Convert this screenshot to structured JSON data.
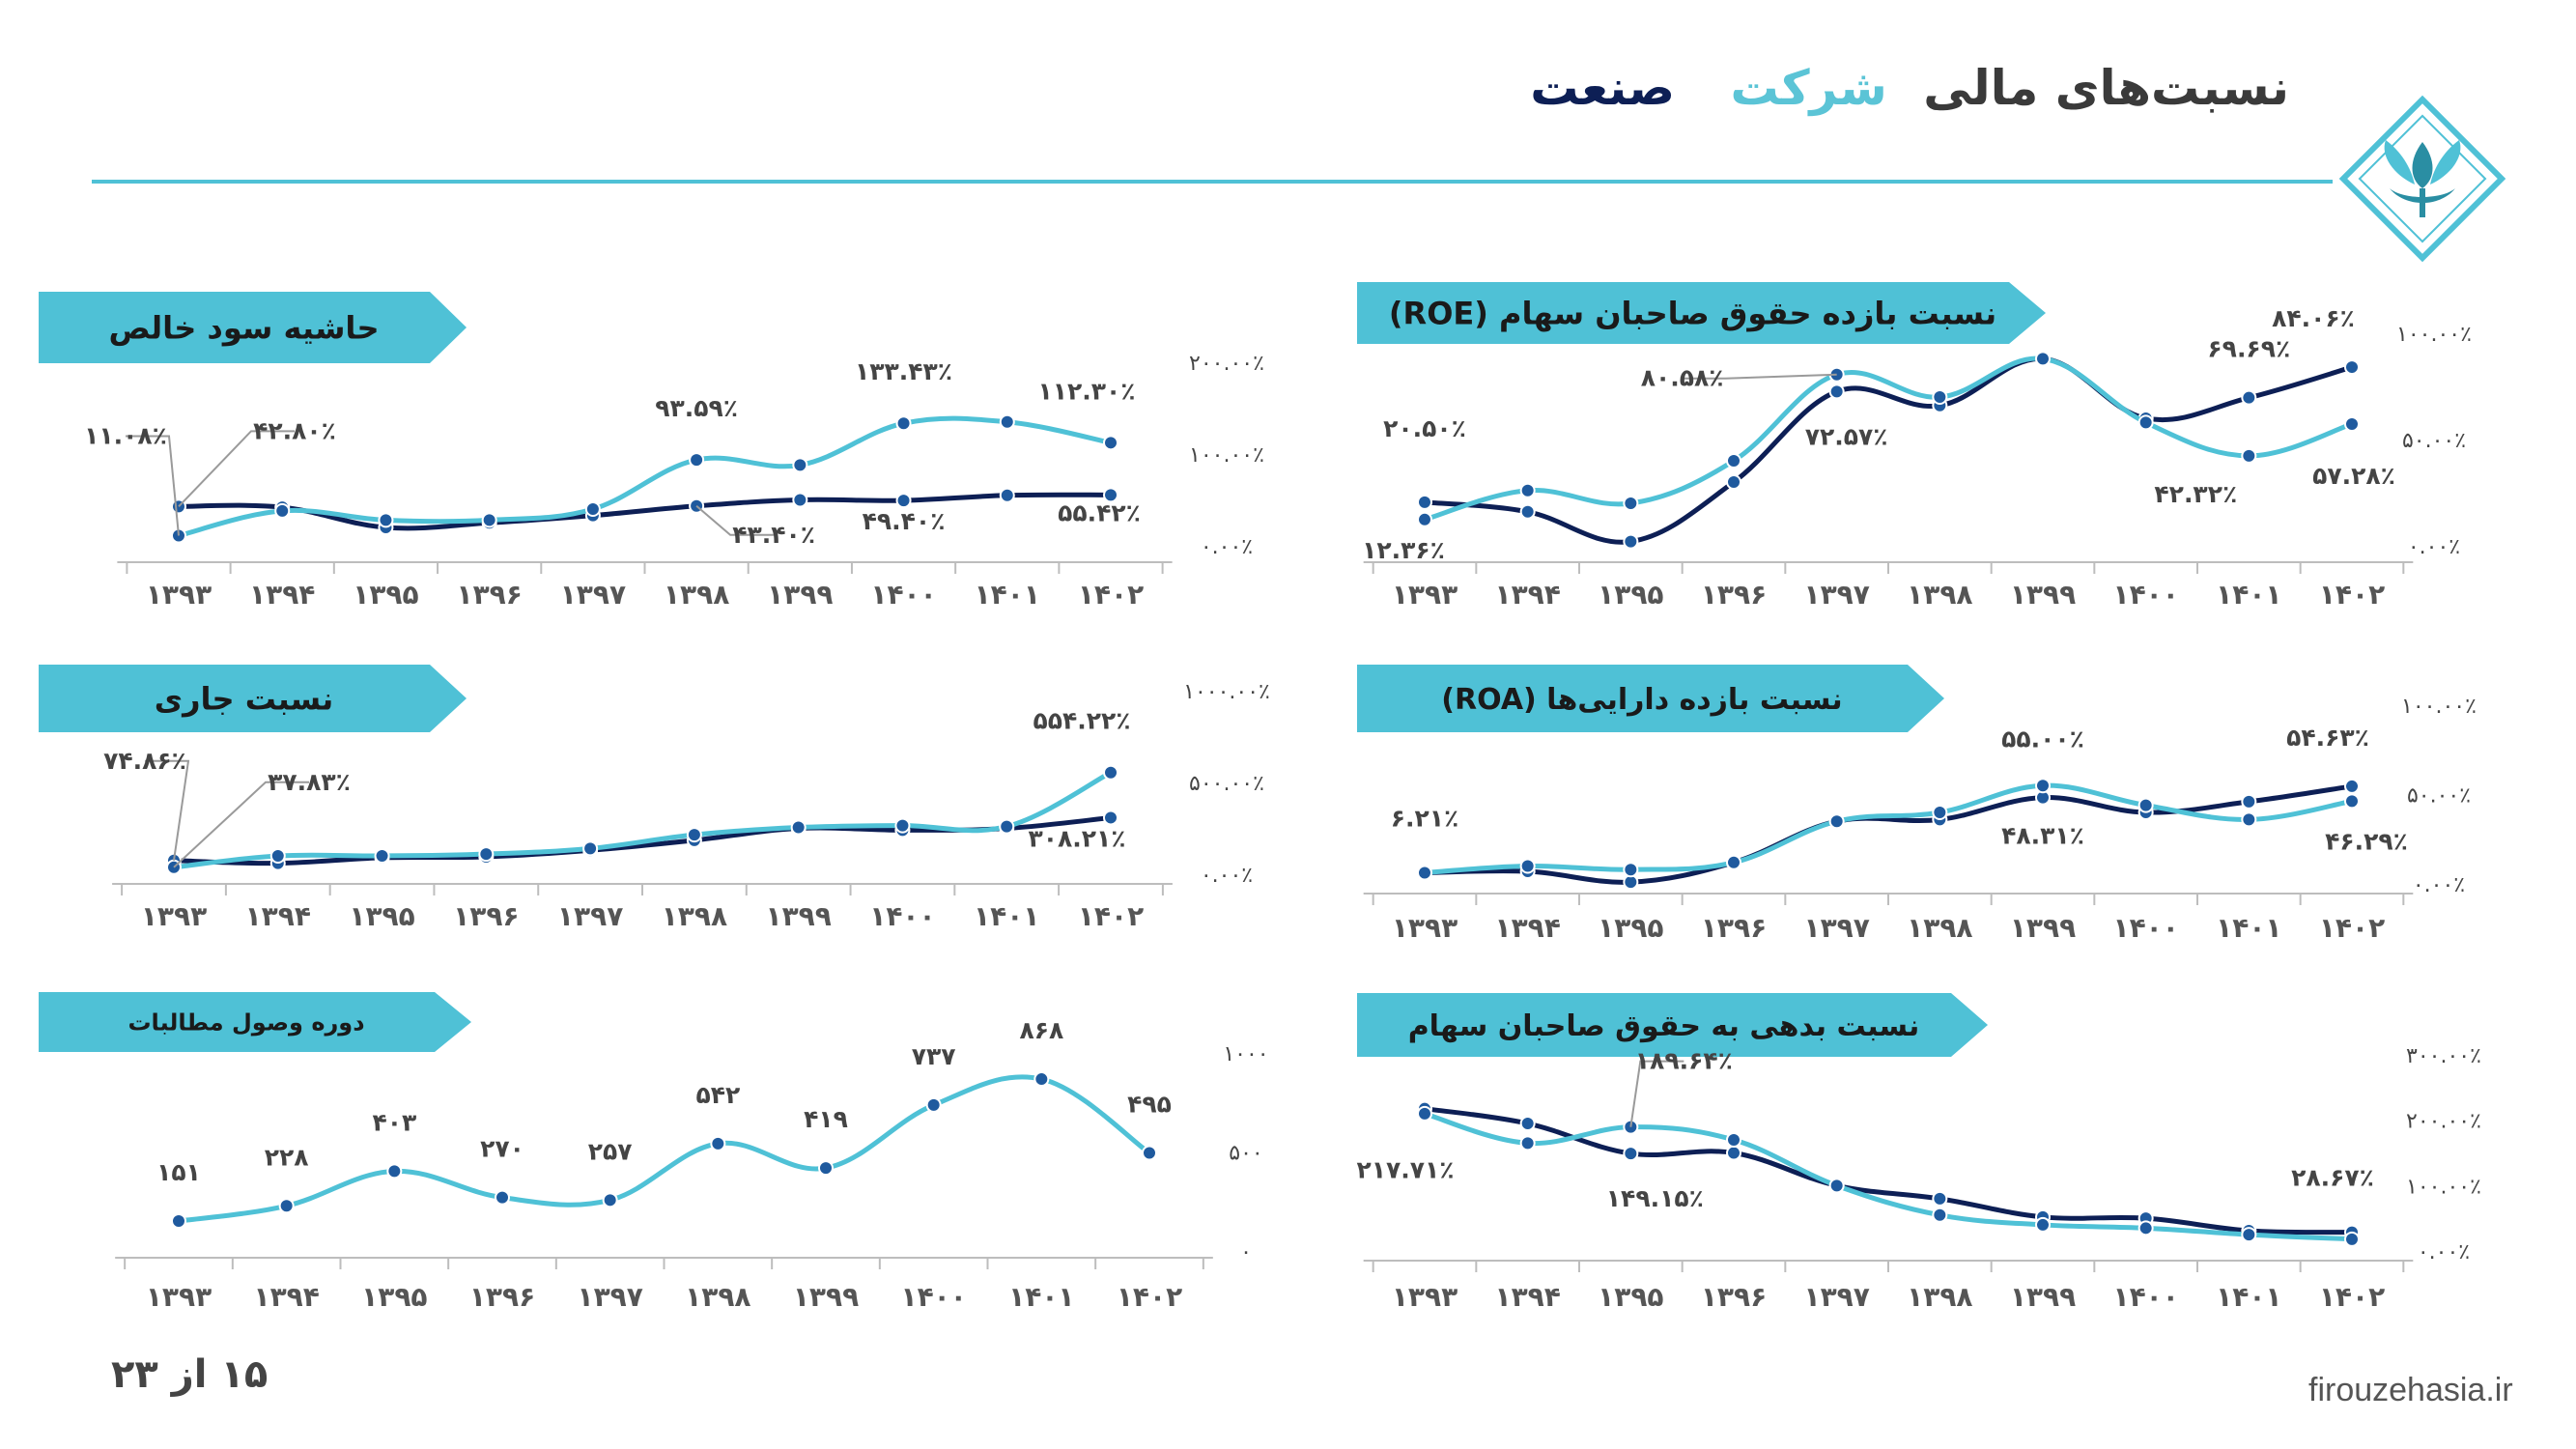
{
  "header": {
    "title_prefix": "نسبت‌های مالی",
    "title_company": "شرکت",
    "title_sector": "صنعت",
    "colors": {
      "line": "#4fc1d6",
      "company": "#5bc4d6",
      "sector": "#0d1f55",
      "banner": "#4fc1d6"
    }
  },
  "footer": {
    "page": "۱۵ از ۲۳",
    "website": "firouzehasia.ir"
  },
  "logo": {
    "icon": "firouzeh-logo-icon"
  },
  "chart_data": [
    {
      "id": "roe",
      "type": "line",
      "banner": "نسبت بازده حقوق صاحبان سهام (ROE)",
      "categories": [
        "۱۳۹۳",
        "۱۳۹۴",
        "۱۳۹۵",
        "۱۳۹۶",
        "۱۳۹۷",
        "۱۳۹۸",
        "۱۳۹۹",
        "۱۴۰۰",
        "۱۴۰۱",
        "۱۴۰۲"
      ],
      "y_ticks": [
        "۰.۰۰٪",
        "۵۰.۰۰٪",
        "۱۰۰.۰۰٪"
      ],
      "ylim": [
        0,
        100
      ],
      "series": [
        {
          "color": "#0d1f55",
          "values": [
            20.5,
            16,
            2,
            30,
            72.57,
            66,
            88,
            60,
            69.69,
            84.06
          ]
        },
        {
          "color": "#4fc1d6",
          "values": [
            12.36,
            26,
            20,
            40,
            80.58,
            70,
            88,
            58,
            42.32,
            57.28
          ]
        }
      ],
      "labels": [
        {
          "text": "۲۰.۵۰٪",
          "series": 0,
          "index": 0,
          "dx": 0,
          "dy": -68
        },
        {
          "text": "۱۲.۳۶٪",
          "series": 1,
          "index": 0,
          "dx": -22,
          "dy": 40
        },
        {
          "text": "۸۰.۵۸٪",
          "series": 1,
          "index": 4,
          "dx": -160,
          "dy": 12,
          "leader": true
        },
        {
          "text": "۷۲.۵۷٪",
          "series": 0,
          "index": 4,
          "dx": 10,
          "dy": 55
        },
        {
          "text": "۶۹.۶۹٪",
          "series": 0,
          "index": 8,
          "dx": 0,
          "dy": -42
        },
        {
          "text": "۸۴.۰۶٪",
          "series": 0,
          "index": 9,
          "dx": -40,
          "dy": -42
        },
        {
          "text": "۴۲.۳۲٪",
          "series": 1,
          "index": 8,
          "dx": -55,
          "dy": 48
        },
        {
          "text": "۵۷.۲۸٪",
          "series": 1,
          "index": 9,
          "dx": 2,
          "dy": 62
        }
      ]
    },
    {
      "id": "npm",
      "type": "line",
      "banner": "حاشیه سود خالص",
      "categories": [
        "۱۳۹۳",
        "۱۳۹۴",
        "۱۳۹۵",
        "۱۳۹۶",
        "۱۳۹۷",
        "۱۳۹۸",
        "۱۳۹۹",
        "۱۴۰۰",
        "۱۴۰۱",
        "۱۴۰۲"
      ],
      "y_ticks": [
        "۰.۰۰٪",
        "۱۰۰.۰۰٪",
        "۲۰۰.۰۰٪"
      ],
      "ylim": [
        0,
        200
      ],
      "series": [
        {
          "color": "#0d1f55",
          "values": [
            42.8,
            42,
            20,
            25,
            33,
            43.4,
            50,
            49.4,
            55,
            55.42
          ]
        },
        {
          "color": "#4fc1d6",
          "values": [
            11.08,
            38,
            28,
            28,
            40,
            93.59,
            88,
            133.43,
            135,
            112.3
          ]
        }
      ],
      "labels": [
        {
          "text": "۱۱.۰۸٪",
          "series": 1,
          "index": 0,
          "dx": -55,
          "dy": -95,
          "leader": true
        },
        {
          "text": "۴۲.۸۰٪",
          "series": 0,
          "index": 0,
          "dx": 120,
          "dy": -70,
          "leader": true
        },
        {
          "text": "۹۳.۵۹٪",
          "series": 1,
          "index": 5,
          "dx": 0,
          "dy": -45
        },
        {
          "text": "۱۳۳.۴۳٪",
          "series": 1,
          "index": 7,
          "dx": 0,
          "dy": -45
        },
        {
          "text": "۱۱۲.۳۰٪",
          "series": 1,
          "index": 9,
          "dx": -25,
          "dy": -45
        },
        {
          "text": "۴۳.۴۰٪",
          "series": 0,
          "index": 5,
          "dx": 80,
          "dy": 38,
          "leader": true
        },
        {
          "text": "۴۹.۴۰٪",
          "series": 0,
          "index": 7,
          "dx": 0,
          "dy": 30
        },
        {
          "text": "۵۵.۴۲٪",
          "series": 0,
          "index": 9,
          "dx": -12,
          "dy": 27
        }
      ]
    },
    {
      "id": "roa",
      "type": "line",
      "banner": "نسبت بازده دارایی‌ها (ROA)",
      "categories": [
        "۱۳۹۳",
        "۱۳۹۴",
        "۱۳۹۵",
        "۱۳۹۶",
        "۱۳۹۷",
        "۱۳۹۸",
        "۱۳۹۹",
        "۱۴۰۰",
        "۱۴۰۱",
        "۱۴۰۲"
      ],
      "y_ticks": [
        "۰.۰۰٪",
        "۵۰.۰۰٪",
        "۱۰۰.۰۰٪"
      ],
      "ylim": [
        0,
        100
      ],
      "series": [
        {
          "color": "#0d1f55",
          "values": [
            6.21,
            7,
            1,
            12,
            35,
            36,
            48.31,
            40,
            46,
            54.63
          ]
        },
        {
          "color": "#4fc1d6",
          "values": [
            6.21,
            10,
            8,
            12,
            35,
            40,
            55,
            44,
            36,
            46.29
          ]
        }
      ],
      "labels": [
        {
          "text": "۶.۲۱٪",
          "series": 0,
          "index": 0,
          "dx": 0,
          "dy": -48
        },
        {
          "text": "۵۵.۰۰٪",
          "series": 1,
          "index": 6,
          "dx": 0,
          "dy": -40
        },
        {
          "text": "۴۸.۳۱٪",
          "series": 0,
          "index": 6,
          "dx": 0,
          "dy": 48
        },
        {
          "text": "۵۴.۶۳٪",
          "series": 0,
          "index": 9,
          "dx": -25,
          "dy": -42
        },
        {
          "text": "۴۶.۲۹٪",
          "series": 1,
          "index": 9,
          "dx": 15,
          "dy": 50
        }
      ]
    },
    {
      "id": "cr",
      "type": "line",
      "banner": "نسبت جاری",
      "categories": [
        "۱۳۹۳",
        "۱۳۹۴",
        "۱۳۹۵",
        "۱۳۹۶",
        "۱۳۹۷",
        "۱۳۹۸",
        "۱۳۹۹",
        "۱۴۰۰",
        "۱۴۰۱",
        "۱۴۰۲"
      ],
      "y_ticks": [
        "۰.۰۰٪",
        "۵۰۰.۰۰٪",
        "۱۰۰۰.۰۰٪"
      ],
      "ylim": [
        0,
        1000
      ],
      "series": [
        {
          "color": "#0d1f55",
          "values": [
            74.86,
            60,
            90,
            95,
            130,
            185,
            250,
            240,
            250,
            308.21
          ]
        },
        {
          "color": "#4fc1d6",
          "values": [
            37.83,
            100,
            100,
            110,
            140,
            215,
            255,
            265,
            260,
            554.22
          ]
        }
      ],
      "labels": [
        {
          "text": "۷۴.۸۶٪",
          "series": 0,
          "index": 0,
          "dx": -30,
          "dy": -95,
          "leader": true
        },
        {
          "text": "۳۷.۸۳٪",
          "series": 1,
          "index": 0,
          "dx": 140,
          "dy": -80,
          "leader": true
        },
        {
          "text": "۵۵۴.۲۲٪",
          "series": 1,
          "index": 9,
          "dx": -30,
          "dy": -45
        },
        {
          "text": "۳۰۸.۲۱٪",
          "series": 0,
          "index": 9,
          "dx": -35,
          "dy": 30
        }
      ]
    },
    {
      "id": "de",
      "type": "line",
      "banner": "نسبت بدهی به حقوق صاحبان سهام",
      "categories": [
        "۱۳۹۳",
        "۱۳۹۴",
        "۱۳۹۵",
        "۱۳۹۶",
        "۱۳۹۷",
        "۱۳۹۸",
        "۱۳۹۹",
        "۱۴۰۰",
        "۱۴۰۱",
        "۱۴۰۲"
      ],
      "y_ticks": [
        "۰.۰۰٪",
        "۱۰۰.۰۰٪",
        "۲۰۰.۰۰٪",
        "۳۰۰.۰۰٪"
      ],
      "ylim": [
        0,
        300
      ],
      "series": [
        {
          "color": "#0d1f55",
          "values": [
            217.71,
            195,
            149.15,
            150,
            100,
            80,
            52,
            50,
            31,
            28.67
          ]
        },
        {
          "color": "#4fc1d6",
          "values": [
            210,
            165,
            189.64,
            170,
            100,
            55,
            40,
            35,
            25,
            18
          ]
        }
      ],
      "labels": [
        {
          "text": "۲۱۷.۷۱٪",
          "series": 0,
          "index": 0,
          "dx": -20,
          "dy": 72
        },
        {
          "text": "۱۸۹.۶۴٪",
          "series": 1,
          "index": 2,
          "dx": 55,
          "dy": -60,
          "leader": true
        },
        {
          "text": "۱۴۹.۱۵٪",
          "series": 0,
          "index": 2,
          "dx": 25,
          "dy": 55
        },
        {
          "text": "۲۸.۶۷٪",
          "series": 0,
          "index": 9,
          "dx": -20,
          "dy": -48
        }
      ]
    },
    {
      "id": "dso",
      "type": "line",
      "banner": "دوره وصول مطالبات",
      "categories": [
        "۱۳۹۳",
        "۱۳۹۴",
        "۱۳۹۵",
        "۱۳۹۶",
        "۱۳۹۷",
        "۱۳۹۸",
        "۱۳۹۹",
        "۱۴۰۰",
        "۱۴۰۱",
        "۱۴۰۲"
      ],
      "y_ticks": [
        "۰",
        "۵۰۰",
        "۱۰۰۰"
      ],
      "ylim": [
        0,
        1000
      ],
      "series": [
        {
          "color": "#4fc1d6",
          "values": [
            151,
            228,
            403,
            270,
            257,
            542,
            419,
            737,
            868,
            495
          ]
        }
      ],
      "labels": [
        {
          "text": "۱۵۱",
          "series": 0,
          "index": 0,
          "dx": 0,
          "dy": -42
        },
        {
          "text": "۲۲۸",
          "series": 0,
          "index": 1,
          "dx": 0,
          "dy": -42
        },
        {
          "text": "۴۰۳",
          "series": 0,
          "index": 2,
          "dx": 0,
          "dy": -42
        },
        {
          "text": "۲۷۰",
          "series": 0,
          "index": 3,
          "dx": 0,
          "dy": -42
        },
        {
          "text": "۲۵۷",
          "series": 0,
          "index": 4,
          "dx": 0,
          "dy": -42
        },
        {
          "text": "۵۴۲",
          "series": 0,
          "index": 5,
          "dx": 0,
          "dy": -42
        },
        {
          "text": "۴۱۹",
          "series": 0,
          "index": 6,
          "dx": 0,
          "dy": -42
        },
        {
          "text": "۷۳۷",
          "series": 0,
          "index": 7,
          "dx": 0,
          "dy": -42
        },
        {
          "text": "۸۶۸",
          "series": 0,
          "index": 8,
          "dx": 0,
          "dy": -42
        },
        {
          "text": "۴۹۵",
          "series": 0,
          "index": 9,
          "dx": 0,
          "dy": -42
        }
      ]
    }
  ]
}
